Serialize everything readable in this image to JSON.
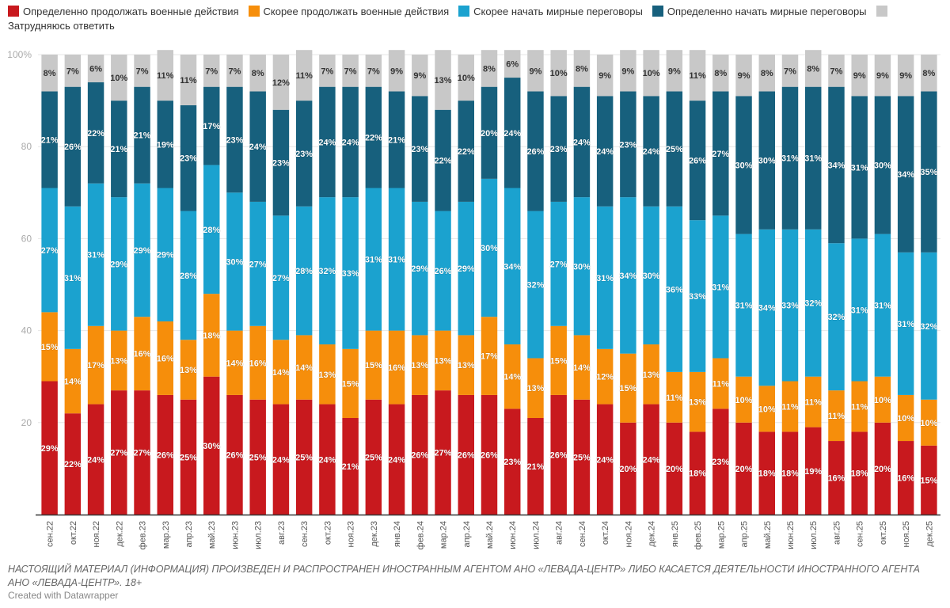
{
  "footer": {
    "note": "НАСТОЯЩИЙ МАТЕРИАЛ (ИНФОРМАЦИЯ) ПРОИЗВЕДЕН И РАСПРОСТРАНЕН ИНОСТРАННЫМ АГЕНТОМ АНО «ЛЕВАДА-ЦЕНТР» ЛИБО КАСАЕТСЯ ДЕЯТЕЛЬНОСТИ ИНОСТРАННОГО АГЕНТА АНО «ЛЕВАДА-ЦЕНТР». 18+",
    "credit": "Created with Datawrapper"
  },
  "chart_data": {
    "type": "bar",
    "stacked": true,
    "orientation": "vertical",
    "title": "",
    "xlabel": "",
    "ylabel": "",
    "ylim": [
      0,
      100
    ],
    "yticks": [
      20,
      40,
      60,
      80,
      100
    ],
    "ytick_labels": [
      "20",
      "40",
      "60",
      "80",
      "100%"
    ],
    "grid": true,
    "legend_position": "top",
    "value_label_suffix": "%",
    "categories": [
      "сен.22",
      "окт.22",
      "ноя.22",
      "дек.22",
      "фев.23",
      "мар.23",
      "апр.23",
      "май.23",
      "июн.23",
      "июл.23",
      "авг.23",
      "сен.23",
      "окт.23",
      "ноя.23",
      "дек.23",
      "янв.24",
      "фев.24",
      "мар.24",
      "апр.24",
      "май.24",
      "июн.24",
      "июл.24",
      "авг.24",
      "сен.24",
      "окт.24",
      "ноя.24",
      "дек.24",
      "янв.25",
      "фев.25",
      "мар.25",
      "апр.25",
      "май.25",
      "июн.25",
      "июл.25",
      "авг.25",
      "сен.25",
      "окт.25",
      "ноя.25",
      "дек.25"
    ],
    "series": [
      {
        "name": "Определенно продолжать военные действия",
        "color": "#c8191e",
        "label_color": "#ffffff",
        "values": [
          29,
          22,
          24,
          27,
          27,
          26,
          25,
          30,
          26,
          25,
          24,
          25,
          24,
          21,
          25,
          24,
          26,
          27,
          26,
          26,
          23,
          21,
          26,
          25,
          24,
          20,
          24,
          20,
          18,
          23,
          20,
          18,
          18,
          19,
          16,
          18,
          20,
          16,
          15
        ]
      },
      {
        "name": "Скорее продолжать военные действия",
        "color": "#f68e0b",
        "label_color": "#ffffff",
        "values": [
          15,
          14,
          17,
          13,
          16,
          16,
          13,
          18,
          14,
          16,
          14,
          14,
          13,
          15,
          15,
          16,
          13,
          13,
          13,
          17,
          14,
          13,
          15,
          14,
          12,
          15,
          13,
          11,
          13,
          11,
          10,
          10,
          11,
          11,
          11,
          11,
          10,
          10,
          10
        ]
      },
      {
        "name": "Скорее начать мирные переговоры",
        "color": "#1ba2cf",
        "label_color": "#ffffff",
        "values": [
          27,
          31,
          31,
          29,
          29,
          29,
          28,
          28,
          30,
          27,
          27,
          28,
          32,
          33,
          31,
          31,
          29,
          26,
          29,
          30,
          34,
          32,
          27,
          30,
          31,
          34,
          30,
          36,
          33,
          31,
          31,
          34,
          33,
          32,
          32,
          31,
          31,
          31,
          32
        ]
      },
      {
        "name": "Определенно начать мирные переговоры",
        "color": "#17607d",
        "label_color": "#ffffff",
        "values": [
          21,
          26,
          22,
          21,
          21,
          19,
          23,
          17,
          23,
          24,
          23,
          23,
          24,
          24,
          22,
          21,
          23,
          22,
          22,
          20,
          24,
          26,
          23,
          24,
          24,
          23,
          24,
          25,
          26,
          27,
          30,
          30,
          31,
          31,
          34,
          31,
          30,
          34,
          35
        ]
      },
      {
        "name": "Затрудняюсь ответить",
        "color": "#c8c8c8",
        "label_color": "#333333",
        "values": [
          8,
          7,
          6,
          10,
          7,
          11,
          11,
          7,
          7,
          8,
          12,
          11,
          7,
          7,
          7,
          9,
          9,
          13,
          10,
          8,
          6,
          9,
          10,
          8,
          9,
          9,
          10,
          9,
          11,
          8,
          9,
          8,
          7,
          8,
          7,
          9,
          9,
          9,
          8
        ]
      }
    ]
  }
}
